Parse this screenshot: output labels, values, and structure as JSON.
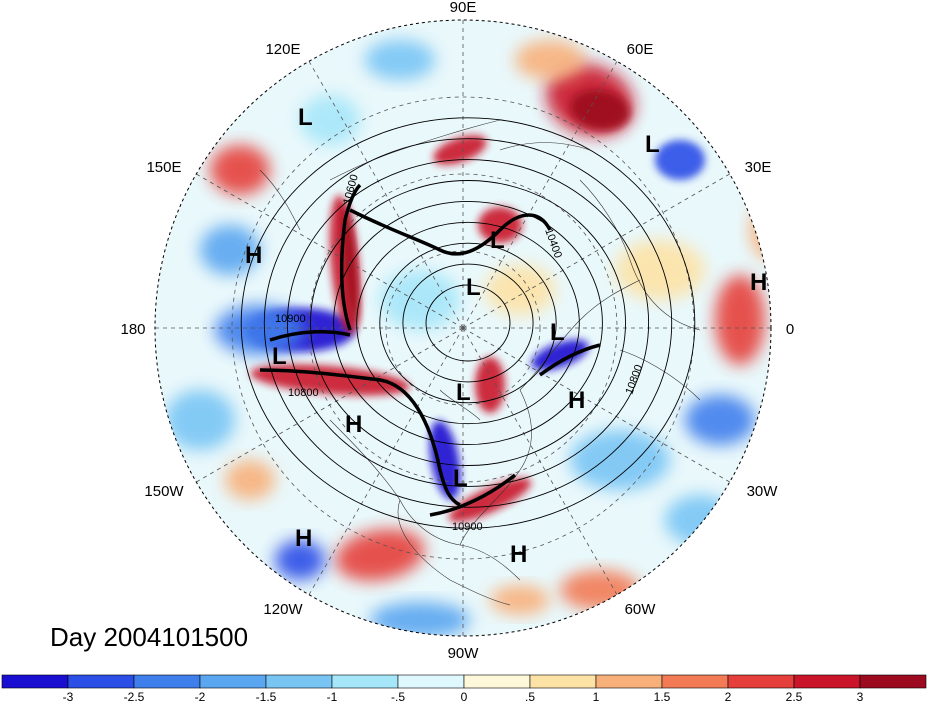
{
  "title": "Day 2004101500",
  "longitude_labels": [
    "90E",
    "60E",
    "30E",
    "0",
    "30W",
    "60W",
    "90W",
    "120W",
    "150W",
    "180",
    "150E",
    "120E"
  ],
  "pressure_centers": [
    {
      "type": "L",
      "label": "L"
    },
    {
      "type": "L",
      "label": "L"
    },
    {
      "type": "L",
      "label": "L"
    },
    {
      "type": "L",
      "label": "L"
    },
    {
      "type": "L",
      "label": "L"
    },
    {
      "type": "L",
      "label": "L"
    },
    {
      "type": "L",
      "label": "L"
    },
    {
      "type": "L",
      "label": "L"
    },
    {
      "type": "H",
      "label": "H"
    },
    {
      "type": "H",
      "label": "H"
    },
    {
      "type": "H",
      "label": "H"
    },
    {
      "type": "H",
      "label": "H"
    },
    {
      "type": "H",
      "label": "H"
    },
    {
      "type": "H",
      "label": "H"
    }
  ],
  "contour_labels": [
    "10900",
    "10800",
    "10900",
    "10800",
    "10400",
    "10600"
  ],
  "colorbar": {
    "ticks": [
      "-3",
      "-2.5",
      "-2",
      "-1.5",
      "-1",
      "-.5",
      "0",
      ".5",
      "1",
      "1.5",
      "2",
      "2.5",
      "3"
    ],
    "colors": [
      "#1a0fd0",
      "#2b4ee6",
      "#3f7fec",
      "#5aa6f0",
      "#78c5f4",
      "#a6e6f9",
      "#dff8fd",
      "#fdf8d9",
      "#fde2a6",
      "#f8b07a",
      "#f27a55",
      "#e53f3b",
      "#c9142a",
      "#9c0a1f"
    ]
  }
}
